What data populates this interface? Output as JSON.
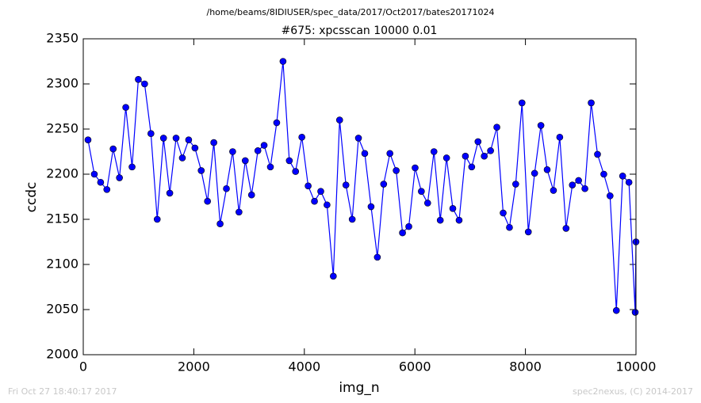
{
  "chart_data": {
    "type": "line",
    "suptitle": "/home/beams/8IDIUSER/spec_data/2017/Oct2017/bates20171024",
    "title": "#675: xpcsscan 10000 0.01",
    "xlabel": "img_n",
    "ylabel": "ccdc",
    "footer_left": "Fri Oct 27 18:40:17 2017",
    "footer_right": "spec2nexus, (C) 2014-2017",
    "x": [
      86,
      200,
      314,
      427,
      541,
      655,
      769,
      883,
      996,
      1110,
      1224,
      1338,
      1452,
      1565,
      1679,
      1793,
      1907,
      2021,
      2134,
      2248,
      2362,
      2476,
      2590,
      2703,
      2817,
      2931,
      3045,
      3159,
      3272,
      3386,
      3500,
      3614,
      3728,
      3841,
      3955,
      4069,
      4183,
      4297,
      4410,
      4524,
      4638,
      4752,
      4866,
      4979,
      5093,
      5207,
      5321,
      5435,
      5548,
      5662,
      5776,
      5890,
      6004,
      6117,
      6231,
      6345,
      6459,
      6573,
      6686,
      6800,
      6914,
      7028,
      7142,
      7255,
      7369,
      7483,
      7597,
      7711,
      7824,
      7938,
      8052,
      8166,
      8280,
      8393,
      8507,
      8621,
      8735,
      8849,
      8962,
      9076,
      9190,
      9304,
      9418,
      9531,
      9645,
      9759,
      9873,
      9986,
      10000
    ],
    "series": [
      {
        "color": "#0000ff",
        "values": [
          2238,
          2200,
          2191,
          2183,
          2228,
          2196,
          2274,
          2208,
          2305,
          2300,
          2245,
          2150,
          2240,
          2179,
          2240,
          2218,
          2238,
          2229,
          2204,
          2170,
          2235,
          2145,
          2184,
          2225,
          2158,
          2215,
          2177,
          2226,
          2232,
          2208,
          2257,
          2325,
          2215,
          2203,
          2241,
          2187,
          2170,
          2181,
          2166,
          2087,
          2260,
          2188,
          2150,
          2240,
          2223,
          2164,
          2108,
          2189,
          2223,
          2204,
          2135,
          2142,
          2207,
          2181,
          2168,
          2225,
          2149,
          2218,
          2162,
          2149,
          2220,
          2208,
          2236,
          2220,
          2226,
          2252,
          2157,
          2141,
          2189,
          2279,
          2136,
          2201,
          2254,
          2205,
          2182,
          2241,
          2140,
          2188,
          2193,
          2184,
          2279,
          2222,
          2200,
          2176,
          2049,
          2198,
          2191,
          2047,
          2125
        ]
      }
    ],
    "xlim": [
      0,
      10000
    ],
    "xticks": [
      0,
      2000,
      4000,
      6000,
      8000,
      10000
    ],
    "ylim": [
      2000,
      2350
    ],
    "yticks": [
      2000,
      2050,
      2100,
      2150,
      2200,
      2250,
      2300,
      2350
    ],
    "grid": false
  }
}
